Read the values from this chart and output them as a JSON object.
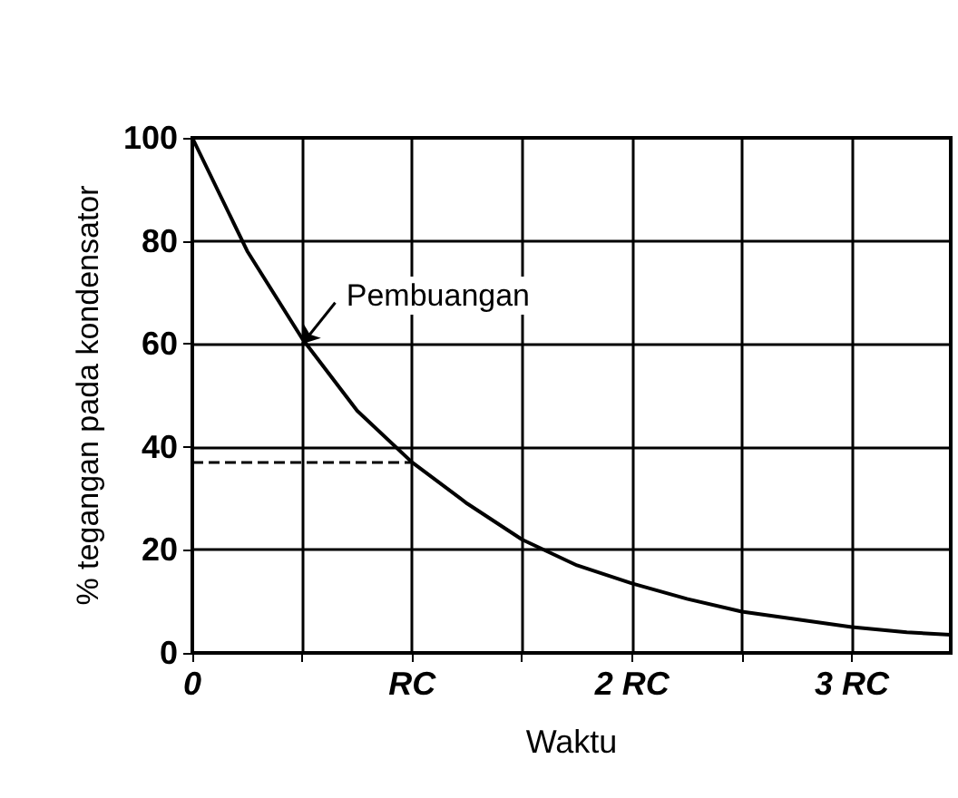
{
  "chart_data": {
    "type": "line",
    "xlabel": "Waktu",
    "ylabel": "% tegangan pada kondensator",
    "x": [
      0,
      0.25,
      0.5,
      0.75,
      1,
      1.25,
      1.5,
      1.75,
      2,
      2.25,
      2.5,
      2.75,
      3,
      3.25,
      3.45
    ],
    "series": [
      {
        "color": "#000000",
        "values": [
          100,
          78,
          61,
          47,
          37,
          29,
          22,
          17,
          13.5,
          10.5,
          8,
          6.5,
          5,
          4,
          3.5
        ]
      }
    ],
    "xlim": [
      0,
      3.45
    ],
    "xticks": [
      {
        "value": 0,
        "label": "0"
      },
      {
        "value": 0.5,
        "label": null
      },
      {
        "value": 1,
        "label": "RC"
      },
      {
        "value": 1.5,
        "label": null
      },
      {
        "value": 2,
        "label": "2 RC"
      },
      {
        "value": 2.5,
        "label": null
      },
      {
        "value": 3,
        "label": "3 RC"
      }
    ],
    "ylim": [
      0,
      100
    ],
    "yticks": [
      0,
      20,
      40,
      60,
      80,
      100
    ],
    "grid": true,
    "marker": "none",
    "line_style": "solid",
    "ref_lines": [
      {
        "axis": "y",
        "value": 37,
        "line_style": "dashed"
      }
    ],
    "annotations": [
      {
        "text": "Pembuangan",
        "x": 0.5,
        "y": 60
      }
    ]
  }
}
